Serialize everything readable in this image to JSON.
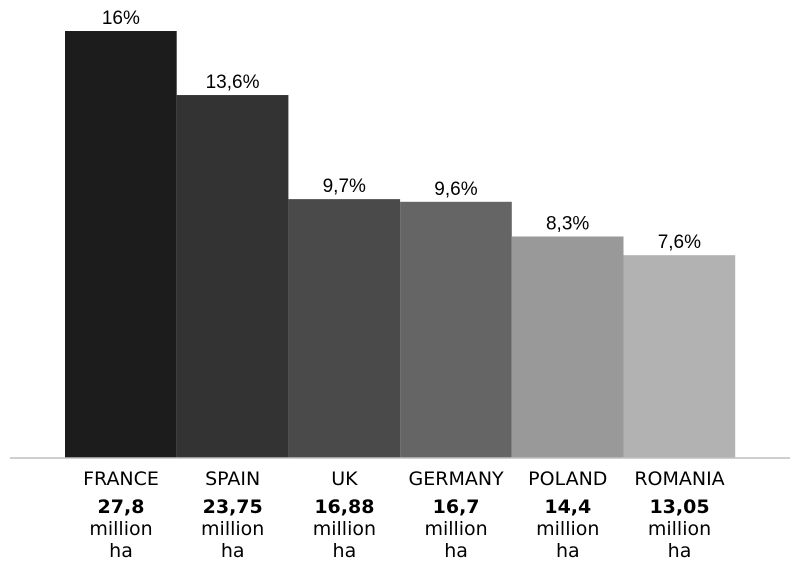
{
  "chart_data": {
    "type": "bar",
    "categories": [
      "FRANCE",
      "SPAIN",
      "UK",
      "GERMANY",
      "POLAND",
      "ROMANIA"
    ],
    "values": [
      16,
      13.6,
      9.7,
      9.6,
      8.3,
      7.6
    ],
    "value_labels": [
      "16%",
      "13,6%",
      "9,7%",
      "9,6%",
      "8,3%",
      "7,6%"
    ],
    "areas": [
      "27,8",
      "23,75",
      "16,88",
      "16,7",
      "14,4",
      "13,05"
    ],
    "area_unit_line1": "million",
    "area_unit_line2": "ha",
    "colors": [
      "#1c1c1c",
      "#333333",
      "#4a4a4a",
      "#656565",
      "#999999",
      "#b2b2b2"
    ],
    "ylim": [
      0,
      16
    ],
    "grid": false,
    "legend": "none"
  }
}
